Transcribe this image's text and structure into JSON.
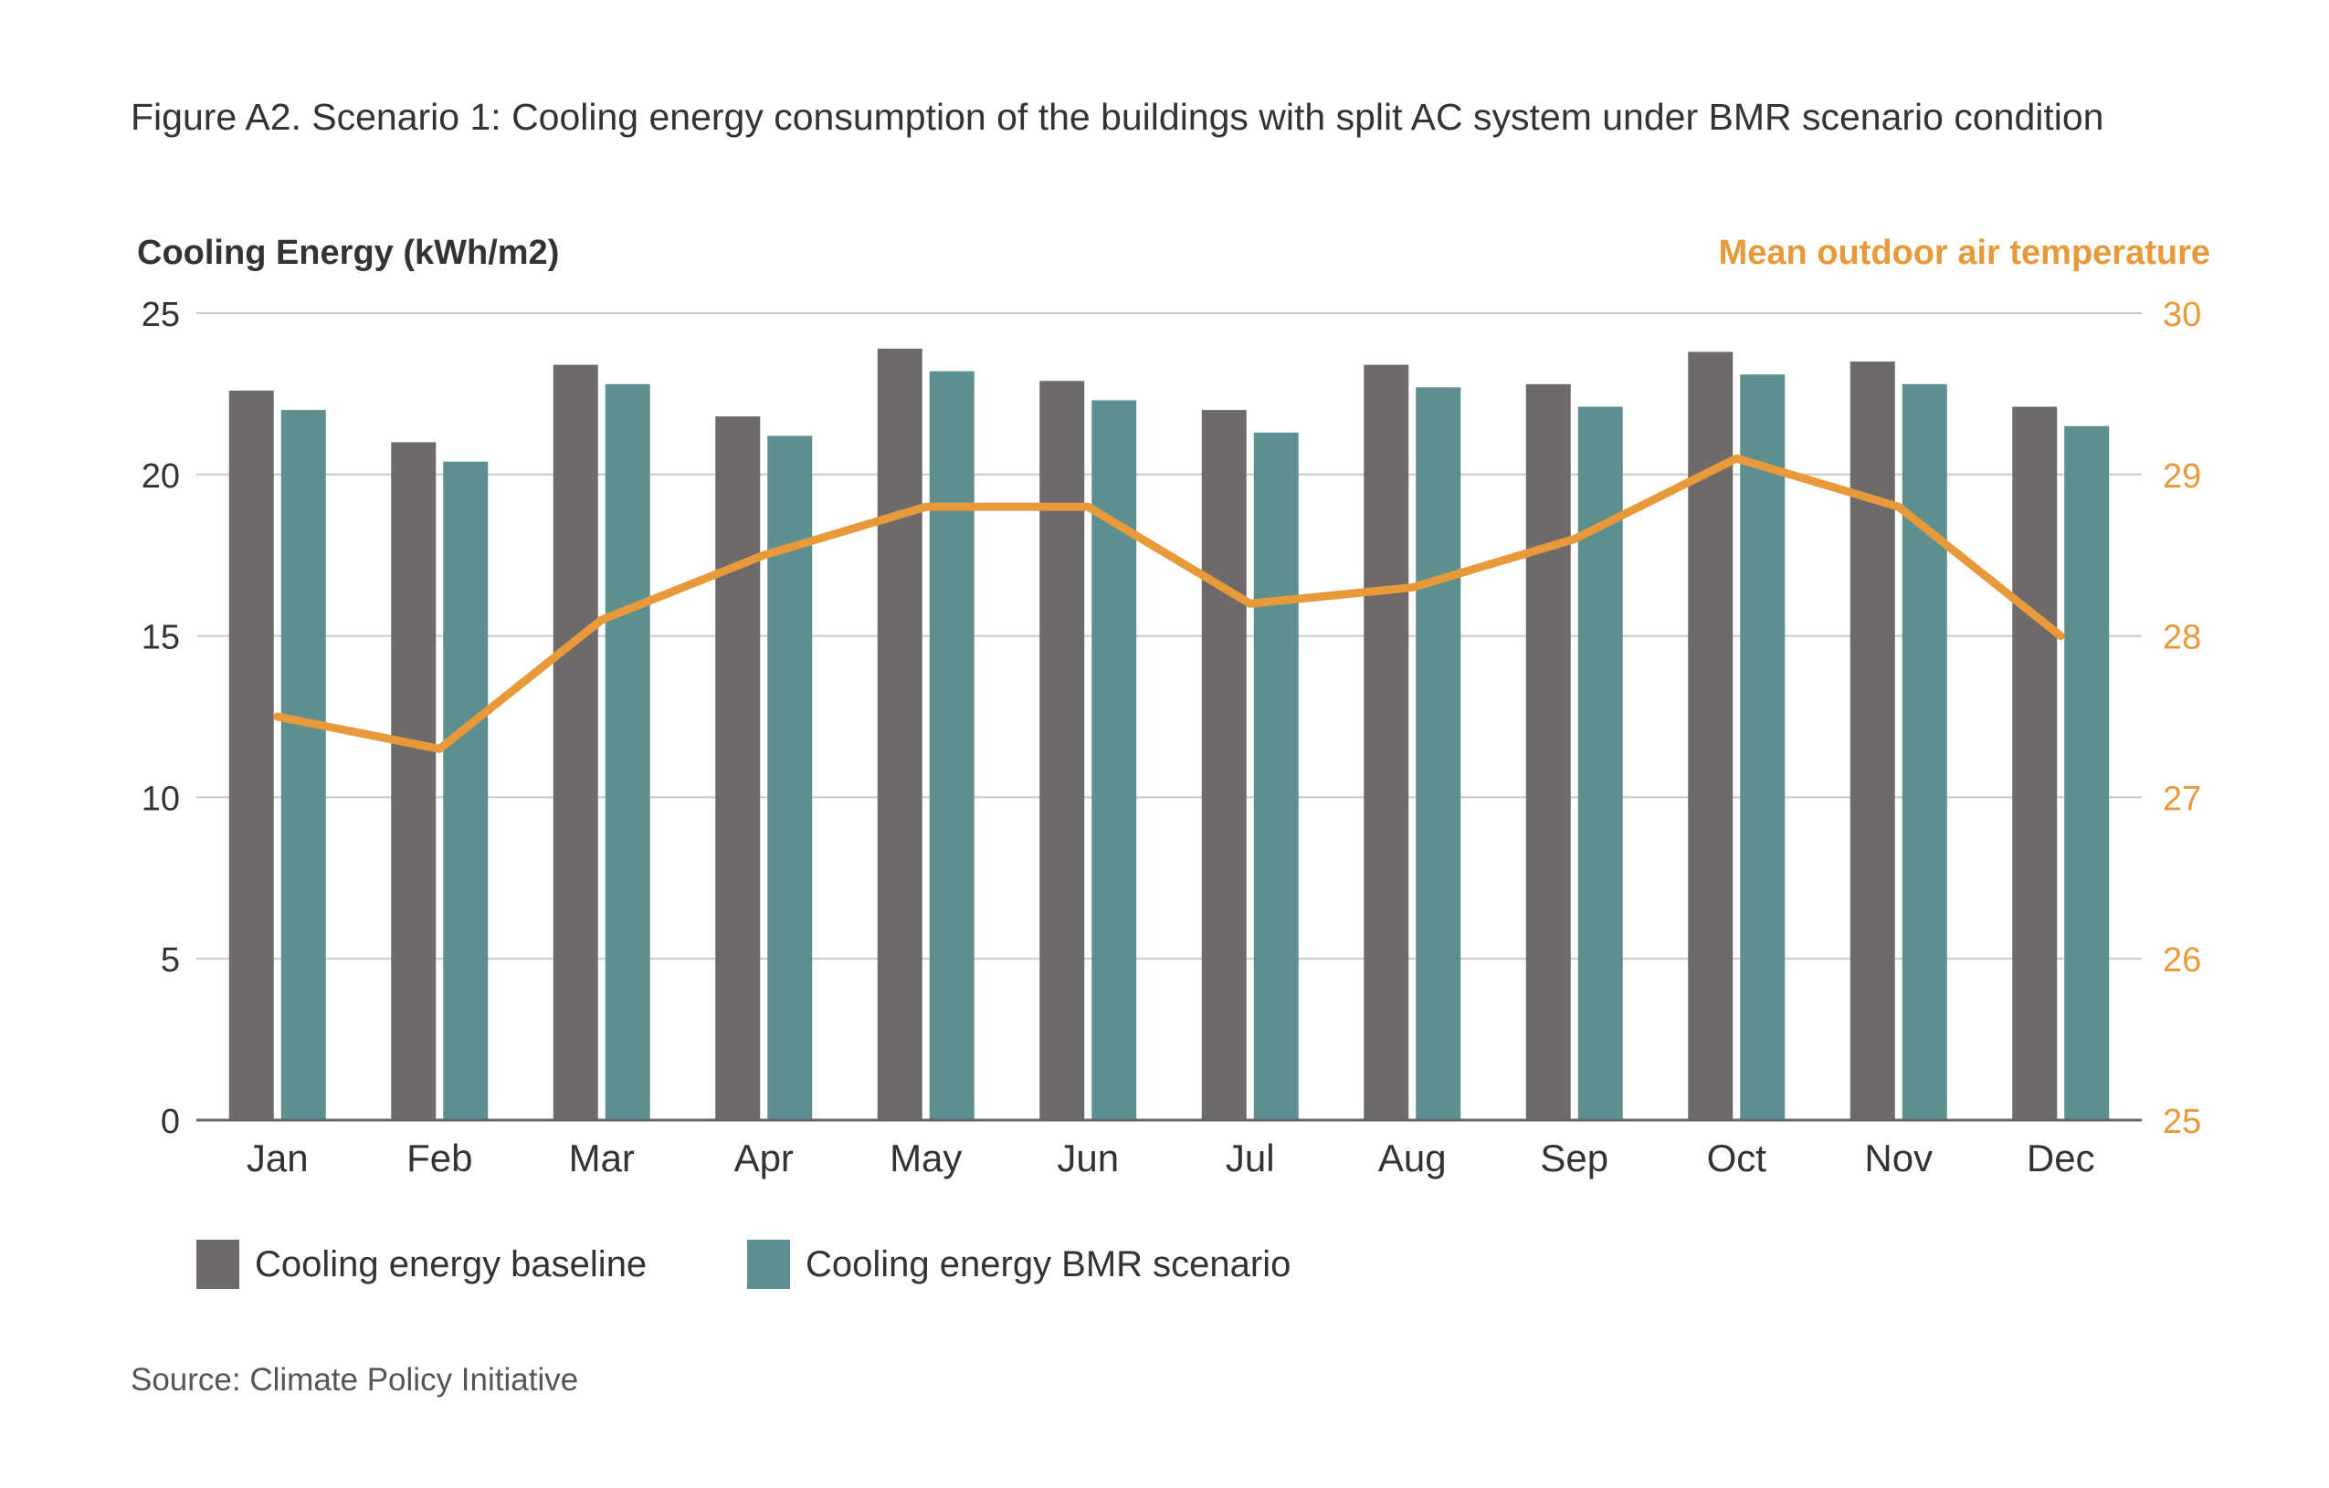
{
  "figure_title": "Figure A2. Scenario 1: Cooling energy consumption of the buildings with split AC system under BMR scenario condition",
  "source": "Source: Climate Policy Initiative",
  "colors": {
    "baseline": "#6e6a69",
    "bmr": "#5d8f8e",
    "temperature": "#e8993a",
    "grid": "#c8c8c8",
    "axis": "#666666"
  },
  "chart_data": {
    "type": "bar",
    "categories": [
      "Jan",
      "Feb",
      "Mar",
      "Apr",
      "May",
      "Jun",
      "Jul",
      "Aug",
      "Sep",
      "Oct",
      "Nov",
      "Dec"
    ],
    "series": [
      {
        "name": "Cooling energy baseline",
        "kind": "bar",
        "axis": "left",
        "values": [
          22.6,
          21.0,
          23.4,
          21.8,
          23.9,
          22.9,
          22.0,
          23.4,
          22.8,
          23.8,
          23.5,
          22.1
        ]
      },
      {
        "name": "Cooling energy BMR scenario",
        "kind": "bar",
        "axis": "left",
        "values": [
          22.0,
          20.4,
          22.8,
          21.2,
          23.2,
          22.3,
          21.3,
          22.7,
          22.1,
          23.1,
          22.8,
          21.5
        ]
      },
      {
        "name": "Mean outdoor air temperature",
        "kind": "line",
        "axis": "right",
        "values": [
          27.5,
          27.3,
          28.1,
          28.5,
          28.8,
          28.8,
          28.2,
          28.3,
          28.6,
          29.1,
          28.8,
          28.0
        ]
      }
    ],
    "ylabel": "Cooling Energy (kWh/m2)",
    "ylim": [
      0,
      25
    ],
    "yticks": [
      "0",
      "5",
      "10",
      "15",
      "20",
      "25"
    ],
    "y2label": "Mean outdoor air temperature",
    "y2lim": [
      25,
      30
    ],
    "y2ticks": [
      "25",
      "26",
      "27",
      "28",
      "29",
      "30"
    ],
    "grid": true,
    "legend_position": "bottom-left"
  },
  "legend": [
    {
      "label": "Cooling energy baseline"
    },
    {
      "label": "Cooling energy BMR scenario"
    }
  ]
}
